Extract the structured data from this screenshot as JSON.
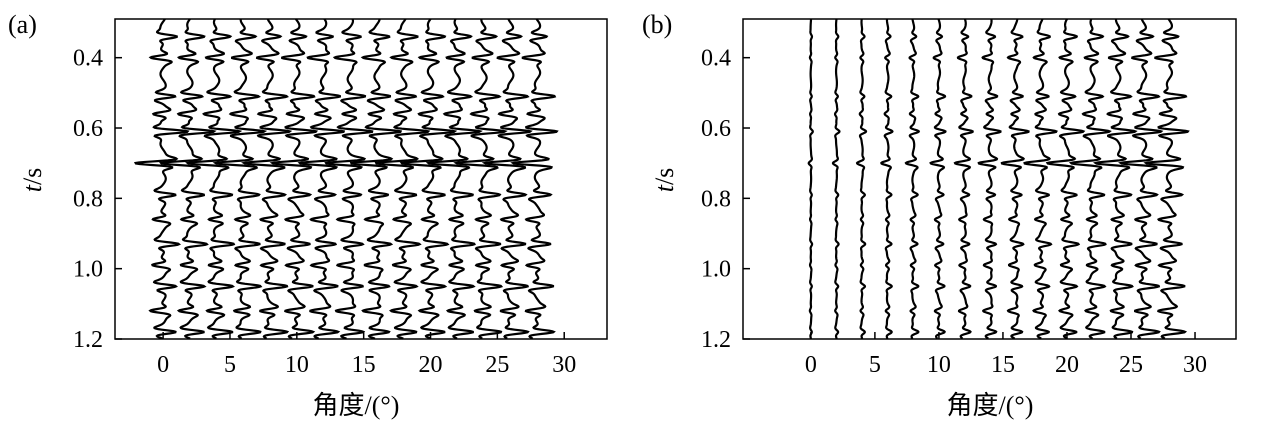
{
  "chart_data": [
    {
      "panel_label": "(a)",
      "type": "seismic-wiggle",
      "xlabel": "角度/(°)",
      "ylabel_italic": "t",
      "ylabel_rest": "/s",
      "xlim": [
        -3.6,
        33.2
      ],
      "ylim": [
        1.2,
        0.29
      ],
      "x_tick_values": [
        0,
        5,
        10,
        15,
        20,
        25,
        30
      ],
      "x_tick_labels": [
        "0",
        "5",
        "10",
        "15",
        "20",
        "25",
        "30"
      ],
      "y_tick_values": [
        0.4,
        0.6,
        0.8,
        1.0,
        1.2
      ],
      "y_tick_labels": [
        "0.4",
        "0.6",
        "0.8",
        "1.0",
        "1.2"
      ],
      "trace_angles": [
        0,
        2,
        4,
        6,
        8,
        10,
        12,
        14,
        16,
        18,
        20,
        22,
        24,
        26,
        28
      ],
      "events": [
        {
          "t": 0.34,
          "amp": 0.8,
          "trend": 0
        },
        {
          "t": 0.4,
          "amp": 0.9,
          "trend": 0
        },
        {
          "t": 0.51,
          "amp": 1.0,
          "trend": 0
        },
        {
          "t": 0.56,
          "amp": 0.7,
          "trend": 0
        },
        {
          "t": 0.61,
          "amp": 1.5,
          "trend": 0
        },
        {
          "t": 0.7,
          "amp": 1.8,
          "trend": 0
        },
        {
          "t": 0.79,
          "amp": 0.9,
          "trend": 0
        },
        {
          "t": 0.86,
          "amp": 0.7,
          "trend": 0
        },
        {
          "t": 0.93,
          "amp": 1.0,
          "trend": 0
        },
        {
          "t": 0.99,
          "amp": 0.7,
          "trend": 0
        },
        {
          "t": 1.05,
          "amp": 1.0,
          "trend": 0
        },
        {
          "t": 1.12,
          "amp": 0.8,
          "trend": 0
        },
        {
          "t": 1.18,
          "amp": 1.0,
          "trend": 0
        }
      ]
    },
    {
      "panel_label": "(b)",
      "type": "seismic-wiggle",
      "xlabel": "角度/(°)",
      "ylabel_italic": "t",
      "ylabel_rest": "/s",
      "xlim": [
        -5.3,
        33.2
      ],
      "ylim": [
        1.2,
        0.29
      ],
      "x_tick_values": [
        0,
        5,
        10,
        15,
        20,
        25,
        30
      ],
      "x_tick_labels": [
        "0",
        "5",
        "10",
        "15",
        "20",
        "25",
        "30"
      ],
      "y_tick_values": [
        0.4,
        0.6,
        0.8,
        1.0,
        1.2
      ],
      "y_tick_labels": [
        "0.4",
        "0.6",
        "0.8",
        "1.0",
        "1.2"
      ],
      "trace_angles": [
        0,
        2,
        4,
        6,
        8,
        10,
        12,
        14,
        16,
        18,
        20,
        22,
        24,
        26,
        28
      ],
      "events": [
        {
          "t": 0.34,
          "amp": 0.8,
          "trend": 1
        },
        {
          "t": 0.4,
          "amp": 0.9,
          "trend": 1
        },
        {
          "t": 0.51,
          "amp": 1.0,
          "trend": 1
        },
        {
          "t": 0.56,
          "amp": 0.7,
          "trend": 1
        },
        {
          "t": 0.61,
          "amp": 1.5,
          "trend": 1
        },
        {
          "t": 0.7,
          "amp": 1.8,
          "trend": 1
        },
        {
          "t": 0.79,
          "amp": 0.9,
          "trend": 1
        },
        {
          "t": 0.86,
          "amp": 0.7,
          "trend": 1
        },
        {
          "t": 0.93,
          "amp": 1.0,
          "trend": 1
        },
        {
          "t": 0.99,
          "amp": 0.7,
          "trend": 1
        },
        {
          "t": 1.05,
          "amp": 1.0,
          "trend": 1
        },
        {
          "t": 1.12,
          "amp": 0.8,
          "trend": 1
        },
        {
          "t": 1.18,
          "amp": 1.0,
          "trend": 1
        }
      ]
    }
  ]
}
